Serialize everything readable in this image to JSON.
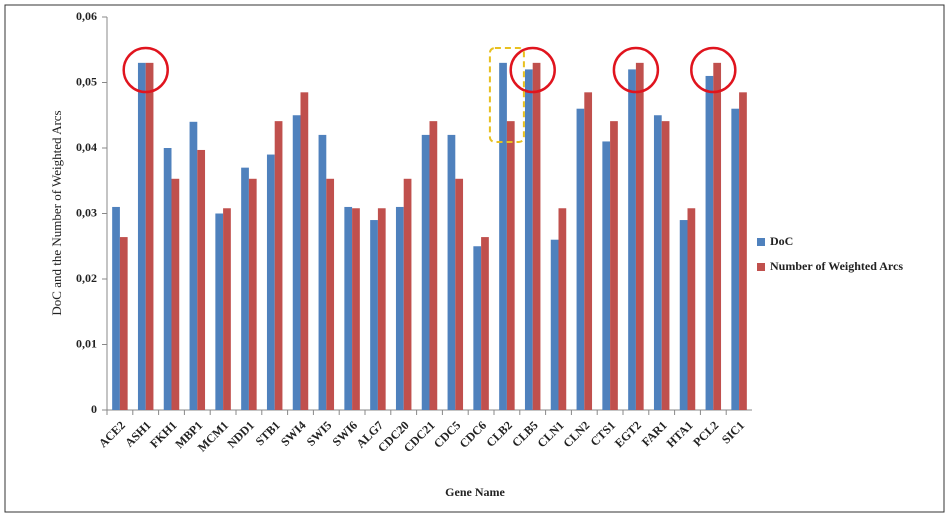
{
  "chart_data": {
    "type": "bar",
    "x_label": "Gene Name",
    "y_label": "DoC and the Number of Weighted Arcs",
    "categories": [
      "ACE2",
      "ASH1",
      "FKH1",
      "MBP1",
      "MCM1",
      "NDD1",
      "STB1",
      "SWI4",
      "SWI5",
      "SWI6",
      "ALG7",
      "CDC20",
      "CDC21",
      "CDC5",
      "CDC6",
      "CLB2",
      "CLB5",
      "CLN1",
      "CLN2",
      "CTS1",
      "EGT2",
      "FAR1",
      "HTA1",
      "PCL2",
      "SIC1"
    ],
    "series": [
      {
        "name": "DoC",
        "color": "#4f81bd",
        "values": [
          0.031,
          0.053,
          0.04,
          0.044,
          0.03,
          0.037,
          0.039,
          0.045,
          0.042,
          0.031,
          0.029,
          0.031,
          0.042,
          0.042,
          0.025,
          0.053,
          0.052,
          0.026,
          0.046,
          0.041,
          0.052,
          0.045,
          0.029,
          0.051,
          0.046
        ]
      },
      {
        "name": "Number of Weighted Arcs",
        "color": "#c0504d",
        "values": [
          0.0264,
          0.053,
          0.0353,
          0.0397,
          0.0308,
          0.0353,
          0.0441,
          0.0485,
          0.0353,
          0.0308,
          0.0308,
          0.0353,
          0.0441,
          0.0353,
          0.0264,
          0.0441,
          0.053,
          0.0308,
          0.0485,
          0.0441,
          0.053,
          0.0441,
          0.0308,
          0.053,
          0.0485
        ]
      }
    ],
    "ylim": [
      0,
      0.06
    ],
    "yticks": [
      0,
      {
        "value": 0.01,
        "label": "0,01"
      },
      {
        "value": 0.02,
        "label": "0,02"
      },
      {
        "value": 0.03,
        "label": "0,03"
      },
      {
        "value": 0.04,
        "label": "0,04"
      },
      {
        "value": 0.05,
        "label": "0,05"
      },
      {
        "value": 0.06,
        "label": "0,06"
      }
    ],
    "legend": "right"
  }
}
